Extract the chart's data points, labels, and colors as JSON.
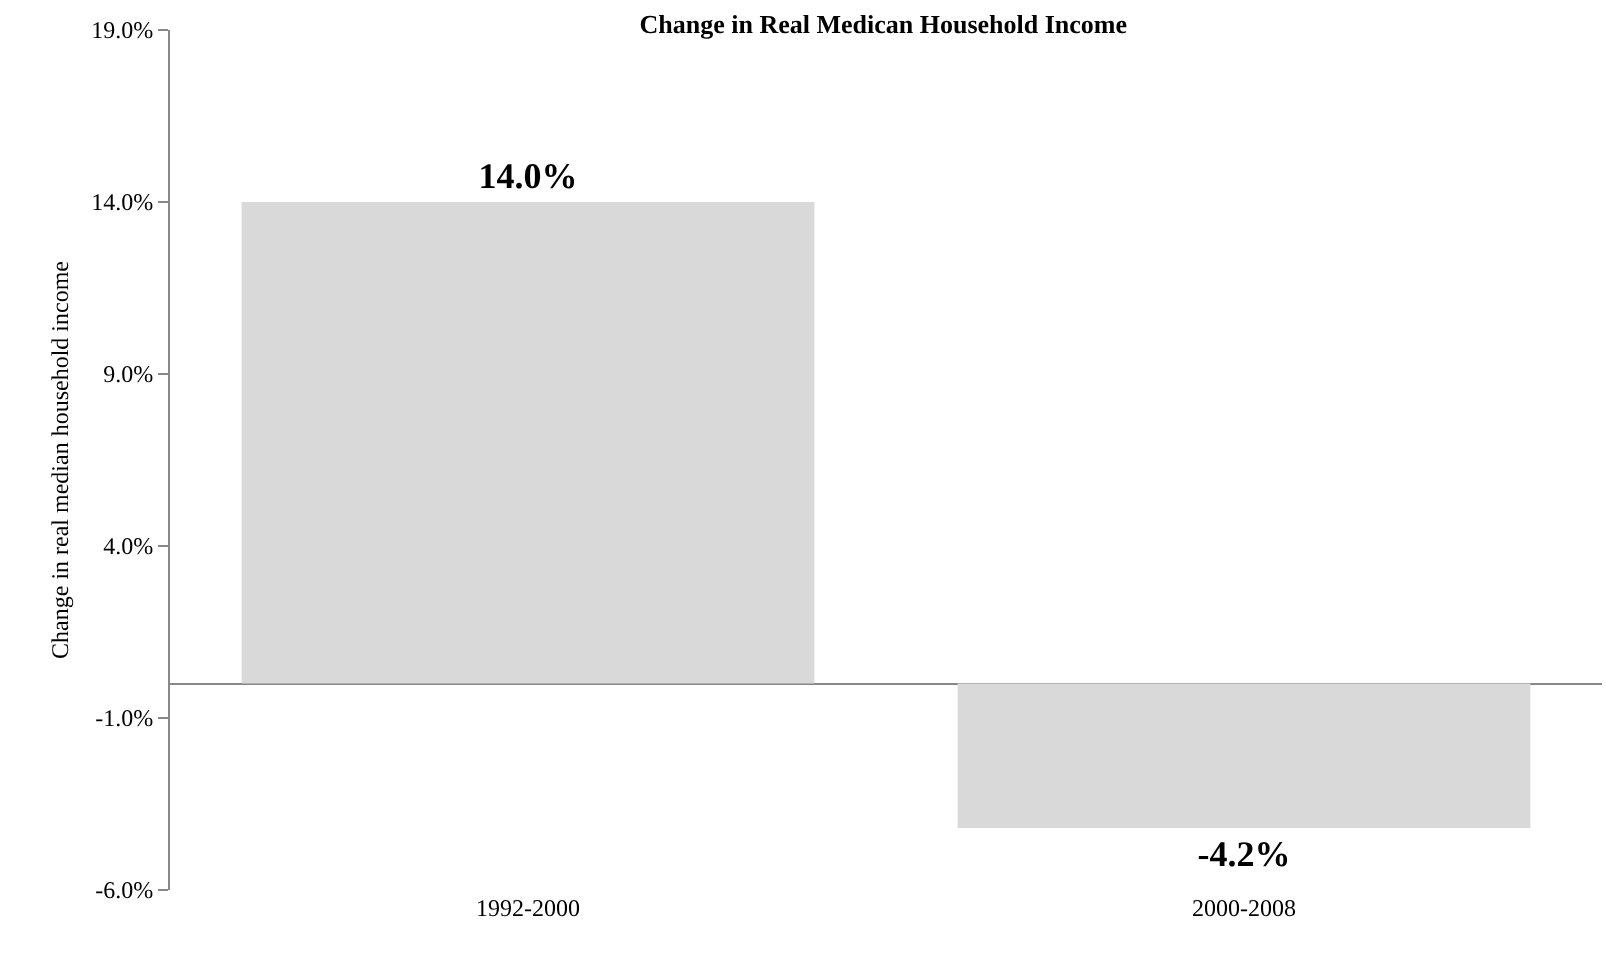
{
  "chart_data": {
    "type": "bar",
    "title": "Change in Real Medican Household Income",
    "ylabel": "Change in real median household income",
    "categories": [
      "1992-2000",
      "2000-2008"
    ],
    "values": [
      14.0,
      -4.2
    ],
    "color": "#d9d9d9",
    "value_labels": [
      "14.0%",
      "-4.2%"
    ],
    "ylim": [
      -6,
      19
    ],
    "yticks": [
      {
        "value": -6,
        "label": "-6.0%"
      },
      {
        "value": -1,
        "label": "-1.0%"
      },
      {
        "value": 4,
        "label": "4.0%"
      },
      {
        "value": 9,
        "label": "9.0%"
      },
      {
        "value": 14,
        "label": "14.0%"
      },
      {
        "value": 19,
        "label": "19.0%"
      }
    ],
    "grid": false
  }
}
